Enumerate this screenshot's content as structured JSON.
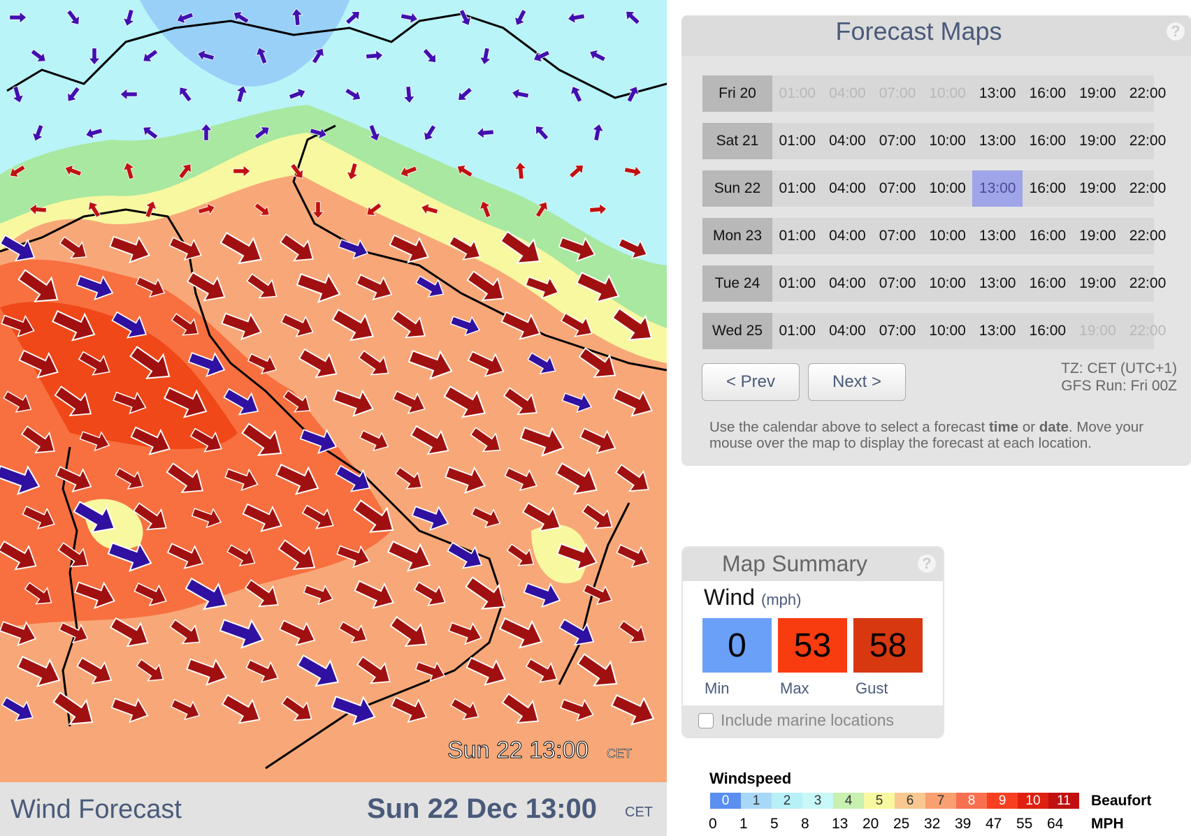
{
  "map": {
    "overlay_label": "Sun 22 13:00",
    "overlay_tz": "CET"
  },
  "footer": {
    "title": "Wind Forecast",
    "datetime": "Sun 22 Dec 13:00",
    "tz": "CET"
  },
  "forecast_maps": {
    "title": "Forecast Maps",
    "help": "?",
    "days": [
      {
        "label": "Fri 20",
        "times": [
          "01:00",
          "04:00",
          "07:00",
          "10:00",
          "13:00",
          "16:00",
          "19:00",
          "22:00"
        ],
        "greyed": [
          0,
          1,
          2,
          3
        ]
      },
      {
        "label": "Sat 21",
        "times": [
          "01:00",
          "04:00",
          "07:00",
          "10:00",
          "13:00",
          "16:00",
          "19:00",
          "22:00"
        ],
        "greyed": []
      },
      {
        "label": "Sun 22",
        "times": [
          "01:00",
          "04:00",
          "07:00",
          "10:00",
          "13:00",
          "16:00",
          "19:00",
          "22:00"
        ],
        "greyed": [],
        "selected": 4
      },
      {
        "label": "Mon 23",
        "times": [
          "01:00",
          "04:00",
          "07:00",
          "10:00",
          "13:00",
          "16:00",
          "19:00",
          "22:00"
        ],
        "greyed": []
      },
      {
        "label": "Tue 24",
        "times": [
          "01:00",
          "04:00",
          "07:00",
          "10:00",
          "13:00",
          "16:00",
          "19:00",
          "22:00"
        ],
        "greyed": []
      },
      {
        "label": "Wed 25",
        "times": [
          "01:00",
          "04:00",
          "07:00",
          "10:00",
          "13:00",
          "16:00",
          "19:00",
          "22:00"
        ],
        "greyed": [
          6,
          7
        ]
      }
    ],
    "prev": "< Prev",
    "next": "Next >",
    "tz": "TZ: CET (UTC+1)",
    "run": "GFS Run: Fri 00Z",
    "instructions": [
      "Use the calendar above to select a forecast ",
      "time",
      " or ",
      "date",
      ". Move your mouse over the map to display the forecast at each location."
    ]
  },
  "map_summary": {
    "title": "Map Summary",
    "help": "?",
    "variable": "Wind",
    "unit": "(mph)",
    "stats": [
      {
        "label": "Min",
        "value": "0",
        "color": "#6aa0f8"
      },
      {
        "label": "Max",
        "value": "53",
        "color": "#f83c10"
      },
      {
        "label": "Gust",
        "value": "58",
        "color": "#d83810"
      }
    ],
    "checkbox": "Include marine locations"
  },
  "legend": {
    "title": "Windspeed",
    "beaufort_label": "Beaufort",
    "mph_label": "MPH",
    "beaufort": [
      "0",
      "1",
      "2",
      "3",
      "4",
      "5",
      "6",
      "7",
      "8",
      "9",
      "10",
      "11"
    ],
    "colors": [
      "#5a8ef0",
      "#a8d8f8",
      "#b8f0f8",
      "#c8f8f8",
      "#c8f0b0",
      "#f8f8a0",
      "#f8c890",
      "#f8a070",
      "#f87050",
      "#f84020",
      "#e02010",
      "#c01010"
    ],
    "mph": [
      "0",
      "1",
      "5",
      "8",
      "13",
      "20",
      "25",
      "32",
      "39",
      "47",
      "55",
      "64"
    ]
  }
}
